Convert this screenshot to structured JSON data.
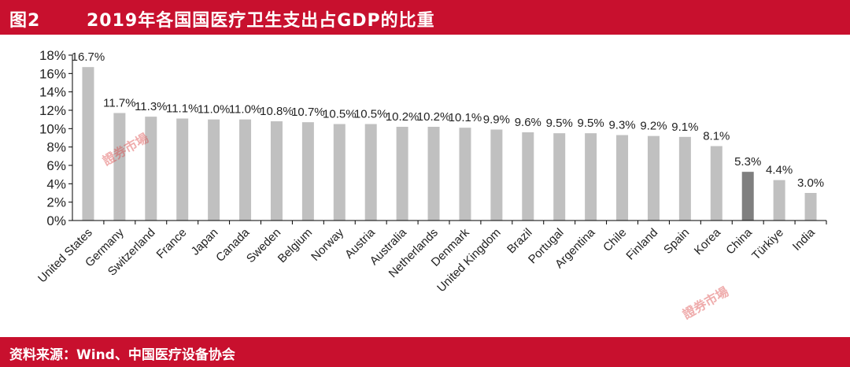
{
  "header": {
    "fig_no": "图2",
    "title": "2019年各国国医疗卫生支出占GDP的比重"
  },
  "footer": {
    "source": "资料来源：Wind、中国医疗设备协会"
  },
  "watermark": {
    "text": "證券市場"
  },
  "colors": {
    "brand_red": "#c8102e",
    "bar_default": "#c0c0c0",
    "bar_highlight": "#7f7f7f"
  },
  "chart_data": {
    "type": "bar",
    "title": "2019年各国国医疗卫生支出占GDP的比重",
    "xlabel": "",
    "ylabel": "",
    "ylim": [
      0,
      18
    ],
    "yticks": [
      "0%",
      "2%",
      "4%",
      "6%",
      "8%",
      "10%",
      "12%",
      "14%",
      "16%",
      "18%"
    ],
    "ytick_values": [
      0,
      2,
      4,
      6,
      8,
      10,
      12,
      14,
      16,
      18
    ],
    "grid": false,
    "legend": "none",
    "highlight_category": "China",
    "categories": [
      "United States",
      "Germany",
      "Switzerland",
      "France",
      "Japan",
      "Canada",
      "Sweden",
      "Belgium",
      "Norway",
      "Austria",
      "Australia",
      "Netherlands",
      "Denmark",
      "United Kingdom",
      "Brazil",
      "Portugal",
      "Argentina",
      "Chile",
      "Finland",
      "Spain",
      "Korea",
      "China",
      "Türkiye",
      "India"
    ],
    "values": [
      16.7,
      11.7,
      11.3,
      11.1,
      11.0,
      11.0,
      10.8,
      10.7,
      10.5,
      10.5,
      10.2,
      10.2,
      10.1,
      9.9,
      9.6,
      9.5,
      9.5,
      9.3,
      9.2,
      9.1,
      8.1,
      5.3,
      4.4,
      3.0
    ],
    "data_labels": [
      "16.7%",
      "11.7%",
      "11.3%",
      "11.1%",
      "11.0%",
      "11.0%",
      "10.8%",
      "10.7%",
      "10.5%",
      "10.5%",
      "10.2%",
      "10.2%",
      "10.1%",
      "9.9%",
      "9.6%",
      "9.5%",
      "9.5%",
      "9.3%",
      "9.2%",
      "9.1%",
      "8.1%",
      "5.3%",
      "4.4%",
      "3.0%"
    ]
  }
}
